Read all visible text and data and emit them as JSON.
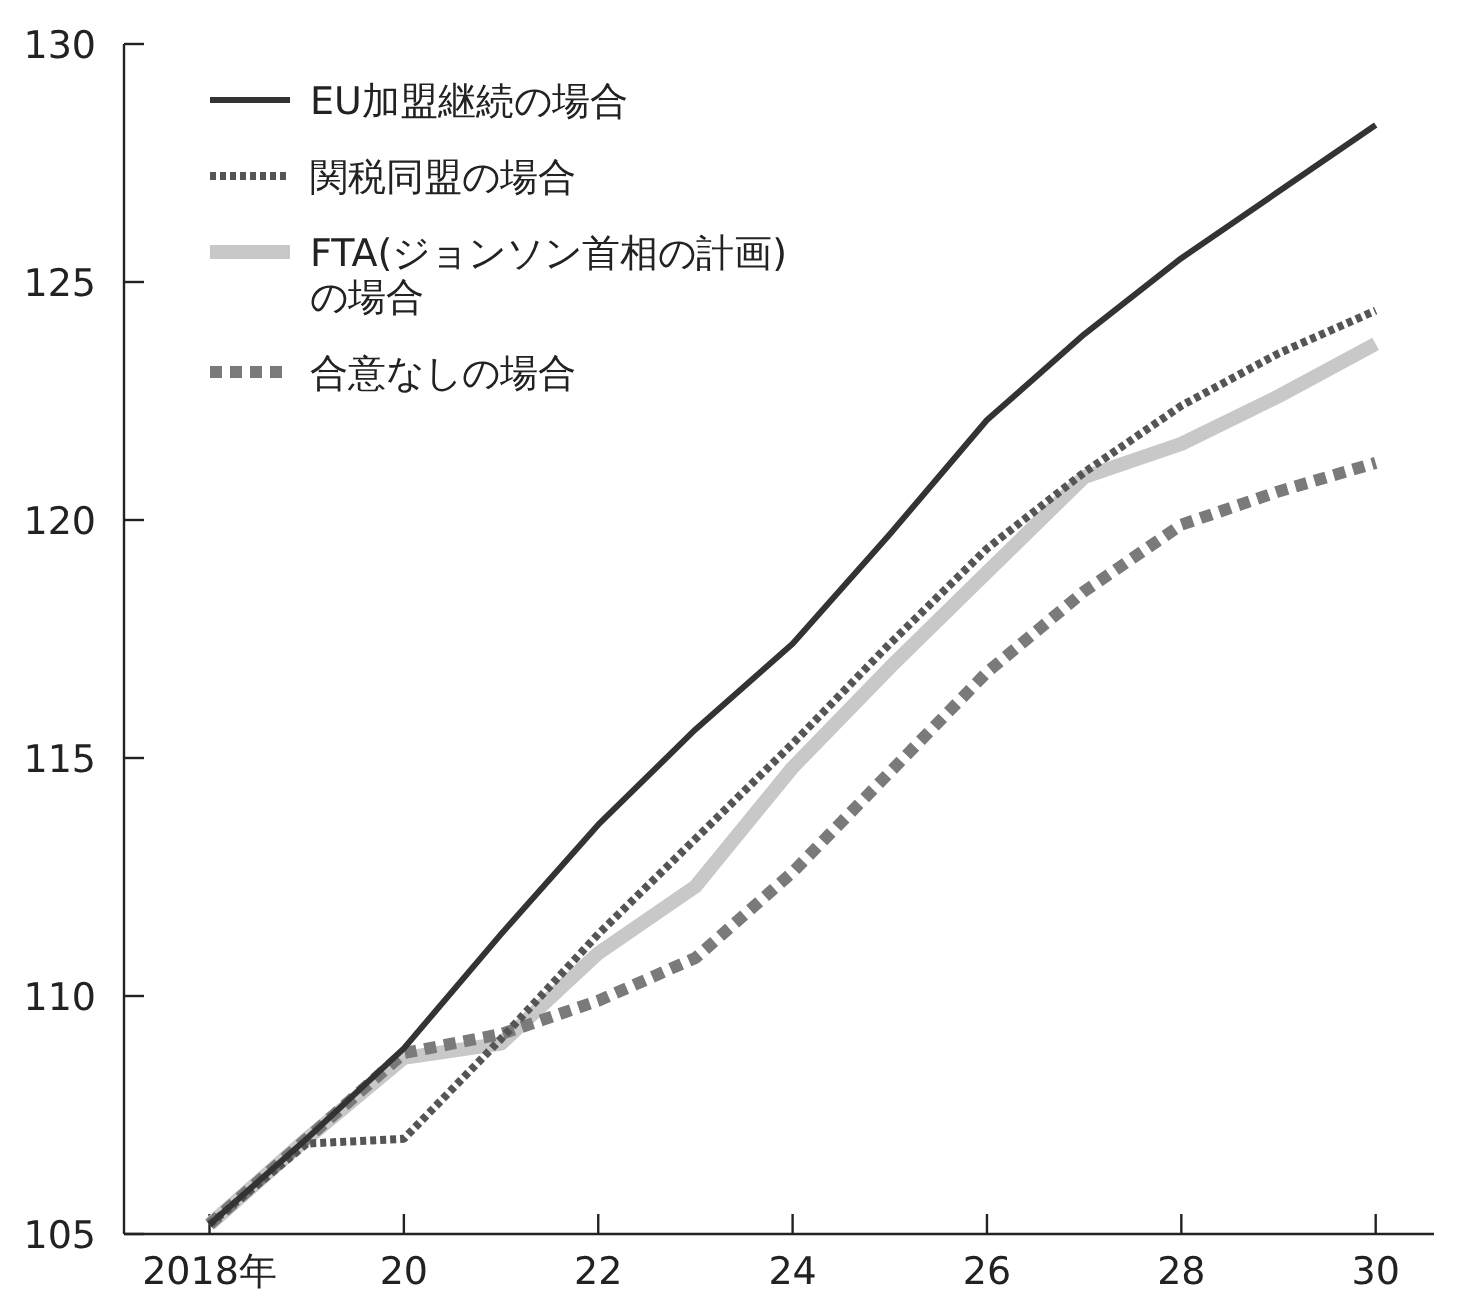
{
  "chart_data": {
    "type": "line",
    "x": [
      2018,
      2019,
      2020,
      2021,
      2022,
      2023,
      2024,
      2025,
      2026,
      2027,
      2028,
      2029,
      2030
    ],
    "xlim": [
      2017.12,
      2030.6
    ],
    "xticks": [
      {
        "value": 2018,
        "label": "2018年"
      },
      {
        "value": 2020,
        "label": "20"
      },
      {
        "value": 2022,
        "label": "22"
      },
      {
        "value": 2024,
        "label": "24"
      },
      {
        "value": 2026,
        "label": "26"
      },
      {
        "value": 2028,
        "label": "28"
      },
      {
        "value": 2030,
        "label": "30"
      }
    ],
    "ylim": [
      105,
      130
    ],
    "yticks": [
      105,
      110,
      115,
      120,
      125,
      130
    ],
    "grid": false,
    "legend": "top left",
    "marker": "none",
    "series": [
      {
        "name": "EU加盟継続の場合",
        "color": "#333333",
        "line_style": "solid",
        "values": [
          105.2,
          107.0,
          108.9,
          111.3,
          113.6,
          115.6,
          117.4,
          119.7,
          122.1,
          123.9,
          125.5,
          126.9,
          128.3
        ]
      },
      {
        "name": "関税同盟の場合",
        "color": "#555555",
        "line_style": "dotted",
        "values": [
          105.2,
          106.9,
          107.0,
          109.1,
          111.3,
          113.3,
          115.3,
          117.4,
          119.4,
          121.0,
          122.4,
          123.5,
          124.4
        ]
      },
      {
        "name": "FTA(ジョンソン首相の計画)\nの場合",
        "color": "#c8c8c8",
        "line_style": "solid",
        "values": [
          105.2,
          107.0,
          108.7,
          109.0,
          110.9,
          112.3,
          114.8,
          116.9,
          118.9,
          120.9,
          121.6,
          122.6,
          123.7
        ]
      },
      {
        "name": "合意なしの場合",
        "color": "#7a7a7a",
        "line_style": "dashed",
        "values": [
          105.2,
          107.0,
          108.8,
          109.2,
          109.9,
          110.8,
          112.6,
          114.7,
          116.8,
          118.5,
          119.9,
          120.6,
          121.2
        ]
      }
    ]
  }
}
